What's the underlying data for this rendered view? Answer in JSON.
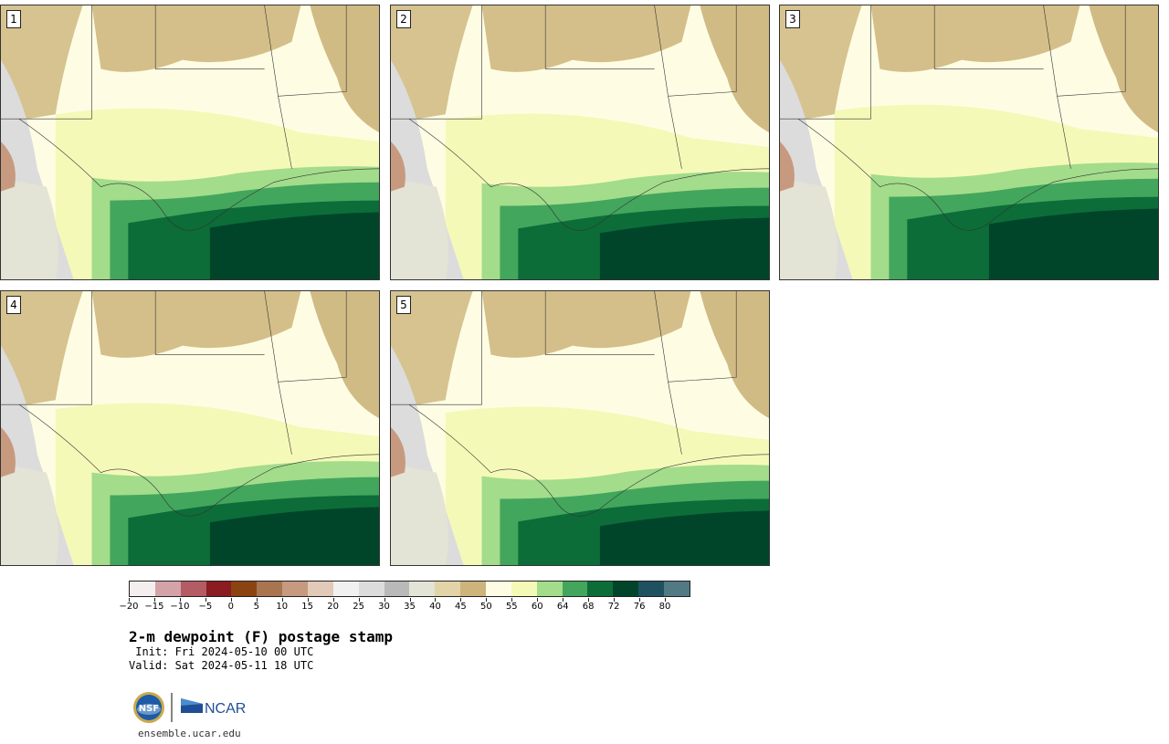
{
  "map": {
    "panels": [
      {
        "label": "1"
      },
      {
        "label": "2"
      },
      {
        "label": "3"
      },
      {
        "label": "4"
      },
      {
        "label": "5"
      }
    ]
  },
  "colorbar": {
    "colors": [
      "#f4eeee",
      "#d3a3a8",
      "#b45b64",
      "#8a1c22",
      "#8b4411",
      "#a97550",
      "#c79a7f",
      "#e2c9b8",
      "#f1f1f1",
      "#dcdcdc",
      "#b9b9b9",
      "#e3e3d6",
      "#e3d4a7",
      "#ccb47a",
      "#fefde4",
      "#f5f9b8",
      "#a3dc8b",
      "#43a65d",
      "#0c6d39",
      "#00452a",
      "#1f5161",
      "#517a84"
    ],
    "ticks": [
      "−20",
      "−15",
      "−10",
      "−5",
      "0",
      "5",
      "10",
      "15",
      "20",
      "25",
      "30",
      "35",
      "40",
      "45",
      "50",
      "55",
      "60",
      "64",
      "68",
      "72",
      "76",
      "80"
    ]
  },
  "title": "2-m dewpoint (F) postage stamp",
  "init": " Init: Fri 2024-05-10 00 UTC",
  "valid": "Valid: Sat 2024-05-11 18 UTC",
  "logo": {
    "nsf": "NSF",
    "ncar": "NCAR"
  },
  "site": "ensemble.ucar.edu"
}
